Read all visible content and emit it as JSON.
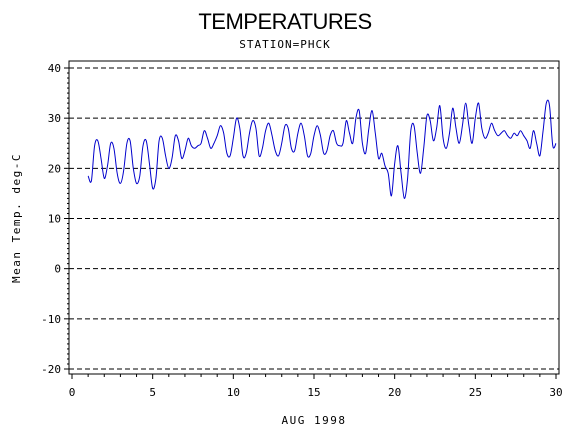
{
  "chart_data": {
    "type": "line",
    "title": "TEMPERATURES",
    "subtitle": "STATION=PHCK",
    "xlabel": "AUG 1998",
    "ylabel": "Mean Temp. deg-C",
    "xlim": [
      0,
      30
    ],
    "ylim": [
      -20,
      40
    ],
    "xticks": [
      0,
      5,
      10,
      15,
      20,
      25,
      30
    ],
    "yticks": [
      -20,
      -10,
      0,
      10,
      20,
      30,
      40
    ],
    "xtick_labels": [
      "0",
      "5",
      "10",
      "15",
      "20",
      "25",
      "30"
    ],
    "ytick_labels": [
      "-20",
      "-10",
      "0",
      "10",
      "20",
      "30",
      "40"
    ],
    "grid": "horizontal-dashed",
    "series": [
      {
        "color": "#0000cc",
        "x": [
          1.0,
          1.2,
          1.4,
          1.6,
          1.8,
          2.0,
          2.2,
          2.4,
          2.6,
          2.8,
          3.0,
          3.2,
          3.4,
          3.6,
          3.8,
          4.0,
          4.2,
          4.4,
          4.6,
          4.8,
          5.0,
          5.2,
          5.4,
          5.6,
          5.8,
          6.0,
          6.2,
          6.4,
          6.6,
          6.8,
          7.0,
          7.2,
          7.4,
          7.6,
          7.8,
          8.0,
          8.2,
          8.4,
          8.6,
          8.8,
          9.0,
          9.2,
          9.4,
          9.6,
          9.8,
          10.0,
          10.2,
          10.4,
          10.6,
          10.8,
          11.0,
          11.2,
          11.4,
          11.6,
          11.8,
          12.0,
          12.2,
          12.4,
          12.6,
          12.8,
          13.0,
          13.2,
          13.4,
          13.6,
          13.8,
          14.0,
          14.2,
          14.4,
          14.6,
          14.8,
          15.0,
          15.2,
          15.4,
          15.6,
          15.8,
          16.0,
          16.2,
          16.4,
          16.6,
          16.8,
          17.0,
          17.2,
          17.4,
          17.6,
          17.8,
          18.0,
          18.2,
          18.4,
          18.6,
          18.8,
          19.0,
          19.2,
          19.4,
          19.6,
          19.8,
          20.0,
          20.2,
          20.4,
          20.6,
          20.8,
          21.0,
          21.2,
          21.4,
          21.6,
          21.8,
          22.0,
          22.2,
          22.4,
          22.6,
          22.8,
          23.0,
          23.2,
          23.4,
          23.6,
          23.8,
          24.0,
          24.2,
          24.4,
          24.6,
          24.8,
          25.0,
          25.2,
          25.4,
          25.6,
          25.8,
          26.0,
          26.2,
          26.4,
          26.6,
          26.8,
          27.0,
          27.2,
          27.4,
          27.6,
          27.8,
          28.0,
          28.2,
          28.4,
          28.6,
          28.8,
          29.0,
          29.2,
          29.4,
          29.6,
          29.8,
          30.0
        ],
        "y": [
          18.5,
          17.5,
          24.5,
          25.5,
          22.0,
          18.0,
          20.5,
          25.0,
          24.0,
          19.0,
          17.0,
          19.5,
          25.0,
          25.5,
          20.0,
          17.0,
          18.5,
          24.5,
          25.5,
          21.0,
          16.0,
          18.0,
          25.5,
          26.0,
          22.5,
          20.0,
          22.0,
          26.5,
          25.5,
          22.0,
          23.5,
          26.0,
          24.5,
          24.0,
          24.5,
          25.0,
          27.5,
          26.0,
          24.0,
          25.0,
          26.5,
          28.5,
          27.0,
          23.0,
          22.5,
          26.0,
          30.0,
          28.0,
          22.5,
          23.0,
          27.0,
          29.5,
          28.0,
          22.5,
          24.0,
          27.5,
          29.0,
          26.5,
          23.5,
          22.5,
          25.0,
          28.5,
          28.0,
          24.0,
          23.5,
          27.0,
          29.0,
          26.5,
          22.5,
          23.0,
          26.5,
          28.5,
          26.5,
          23.0,
          23.5,
          26.5,
          27.5,
          25.0,
          24.5,
          25.0,
          29.5,
          27.0,
          25.0,
          30.0,
          31.5,
          25.0,
          23.0,
          28.0,
          31.5,
          27.0,
          22.0,
          23.0,
          20.5,
          19.0,
          14.5,
          21.0,
          24.5,
          19.0,
          14.0,
          18.0,
          27.5,
          28.5,
          23.0,
          19.0,
          24.0,
          30.5,
          29.5,
          25.5,
          28.0,
          32.5,
          26.0,
          24.0,
          27.0,
          32.0,
          28.0,
          25.0,
          28.5,
          33.0,
          28.5,
          25.0,
          30.0,
          33.0,
          28.0,
          26.0,
          27.0,
          29.0,
          27.5,
          26.5,
          27.0,
          27.5,
          26.5,
          26.0,
          27.0,
          26.5,
          27.5,
          26.5,
          25.5,
          24.0,
          27.5,
          25.0,
          22.5,
          27.5,
          33.0,
          32.5,
          24.5,
          25.0
        ]
      }
    ]
  }
}
